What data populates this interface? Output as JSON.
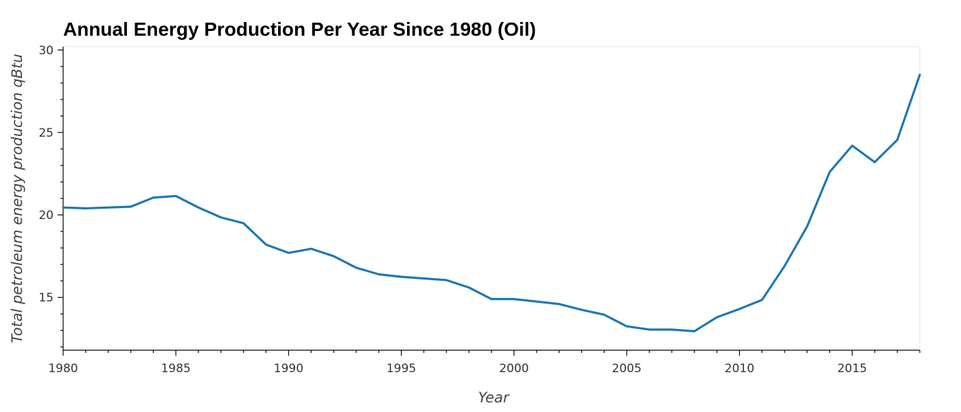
{
  "chart_data": {
    "type": "line",
    "title": "Annual Energy Production Per Year Since 1980 (Oil)",
    "xlabel": "Year",
    "ylabel": "Total petroleum energy production qBtu",
    "xlim": [
      1980,
      2018
    ],
    "ylim": [
      11.8,
      30.2
    ],
    "x_ticks": [
      1980,
      1985,
      1990,
      1995,
      2000,
      2005,
      2010,
      2015
    ],
    "y_ticks": [
      15,
      20,
      25,
      30
    ],
    "grid": false,
    "legend": "none",
    "line_color": "#1f77b4",
    "series": [
      {
        "x": [
          1980,
          1981,
          1982,
          1983,
          1984,
          1985,
          1986,
          1987,
          1988,
          1989,
          1990,
          1991,
          1992,
          1993,
          1994,
          1995,
          1996,
          1997,
          1998,
          1999,
          2000,
          2001,
          2002,
          2003,
          2004,
          2005,
          2006,
          2007,
          2008,
          2009,
          2010,
          2011,
          2012,
          2013,
          2014,
          2015,
          2016,
          2017,
          2018
        ],
        "values": [
          20.45,
          20.4,
          20.45,
          20.5,
          21.05,
          21.15,
          20.45,
          19.85,
          19.5,
          18.2,
          17.7,
          17.95,
          17.5,
          16.8,
          16.4,
          16.25,
          16.15,
          16.05,
          15.6,
          14.9,
          14.9,
          14.75,
          14.6,
          14.25,
          13.95,
          13.25,
          13.05,
          13.05,
          12.95,
          13.8,
          14.3,
          14.85,
          16.9,
          19.3,
          22.6,
          24.2,
          23.2,
          24.55,
          28.5
        ]
      }
    ]
  }
}
